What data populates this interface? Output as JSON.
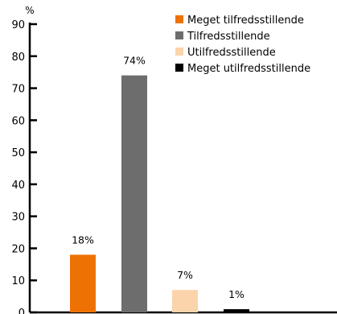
{
  "chart_data": {
    "type": "bar",
    "unit": "%",
    "ylim": [
      0,
      90
    ],
    "yticks": [
      0,
      10,
      20,
      30,
      40,
      50,
      60,
      70,
      80,
      90
    ],
    "grid": false,
    "legend_position": "top-right",
    "categories": [
      "Meget tilfredsstillende",
      "Tilfredsstillende",
      "Utilfredsstillende",
      "Meget utilfredsstillende"
    ],
    "values": [
      18,
      74,
      7,
      1
    ],
    "labels": [
      "18%",
      "74%",
      "7%",
      "1%"
    ],
    "colors": [
      "#ee7203",
      "#6d6d6d",
      "#fbd4ac",
      "#000000"
    ]
  }
}
